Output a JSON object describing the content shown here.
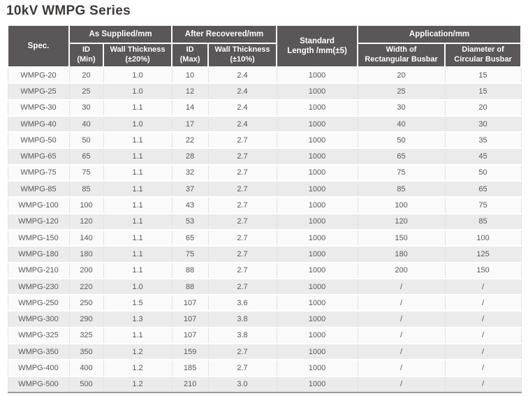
{
  "page_title": "10kV WMPG Series",
  "colors": {
    "header_bg": "#595757",
    "header_text": "#ffffff",
    "body_text": "#595757",
    "row_odd": "#fafafa",
    "row_even": "#ebebeb",
    "divider": "#e3e3e3",
    "table_bottom_border": "#9a9a9a",
    "title_text": "#3d3a39"
  },
  "table": {
    "header": {
      "spec": "Spec.",
      "as_supplied": "As Supplied/mm",
      "after_recovered": "After Recovered/mm",
      "standard_length": "Standard\nLength /mm(±5)",
      "application": "Application/mm"
    },
    "sub_header": {
      "id_min": "ID\n(Min)",
      "wall_thickness_20": "Wall Thickness\n(±20%)",
      "id_max": "ID\n(Max)",
      "wall_thickness_10": "Wall Thickness\n(±10%)",
      "width_rect_busbar": "Width of\nRectangular Busbar",
      "dia_circ_busbar": "Diameter of\nCircular Busbar"
    },
    "column_keys": [
      "spec",
      "id-min",
      "wall-thickness-20",
      "id-max",
      "wall-thickness-10",
      "standard-length",
      "width-rect-busbar",
      "dia-circ-busbar"
    ],
    "rows": [
      [
        "WMPG-20",
        "20",
        "1.0",
        "10",
        "2.4",
        "1000",
        "20",
        "15"
      ],
      [
        "WMPG-25",
        "25",
        "1.0",
        "12",
        "2.4",
        "1000",
        "25",
        "15"
      ],
      [
        "WMPG-30",
        "30",
        "1.1",
        "14",
        "2.4",
        "1000",
        "30",
        "20"
      ],
      [
        "WMPG-40",
        "40",
        "1.0",
        "17",
        "2.4",
        "1000",
        "40",
        "30"
      ],
      [
        "WMPG-50",
        "50",
        "1.1",
        "22",
        "2.7",
        "1000",
        "50",
        "35"
      ],
      [
        "WMPG-65",
        "65",
        "1.1",
        "28",
        "2.7",
        "1000",
        "65",
        "45"
      ],
      [
        "WMPG-75",
        "75",
        "1.1",
        "32",
        "2.7",
        "1000",
        "75",
        "50"
      ],
      [
        "WMPG-85",
        "85",
        "1.1",
        "37",
        "2.7",
        "1000",
        "85",
        "65"
      ],
      [
        "WMPG-100",
        "100",
        "1.1",
        "43",
        "2.7",
        "1000",
        "100",
        "75"
      ],
      [
        "WMPG-120",
        "120",
        "1.1",
        "53",
        "2.7",
        "1000",
        "120",
        "85"
      ],
      [
        "WMPG-150",
        "140",
        "1.1",
        "65",
        "2.7",
        "1000",
        "150",
        "100"
      ],
      [
        "WMPG-180",
        "180",
        "1.1",
        "75",
        "2.7",
        "1000",
        "180",
        "125"
      ],
      [
        "WMPG-210",
        "200",
        "1.1",
        "88",
        "2.7",
        "1000",
        "200",
        "150"
      ],
      [
        "WMPG-230",
        "220",
        "1.0",
        "88",
        "2.7",
        "1000",
        "/",
        "/"
      ],
      [
        "WMPG-250",
        "250",
        "1.5",
        "107",
        "3.6",
        "1000",
        "/",
        "/"
      ],
      [
        "WMPG-300",
        "290",
        "1.3",
        "107",
        "3.8",
        "1000",
        "/",
        "/"
      ],
      [
        "WMPG-325",
        "325",
        "1.1",
        "107",
        "3.8",
        "1000",
        "/",
        "/"
      ],
      [
        "WMPG-350",
        "350",
        "1.2",
        "159",
        "2.7",
        "1000",
        "/",
        "/"
      ],
      [
        "WMPG-400",
        "400",
        "1.2",
        "185",
        "2.7",
        "1000",
        "/",
        "/"
      ],
      [
        "WMPG-500",
        "500",
        "1.2",
        "210",
        "3.0",
        "1000",
        "/",
        "/"
      ]
    ]
  }
}
